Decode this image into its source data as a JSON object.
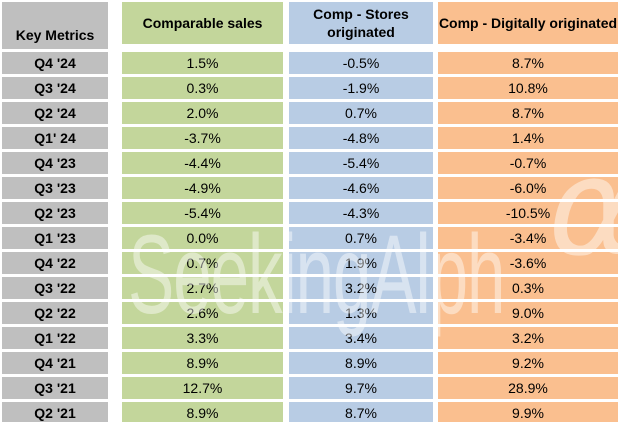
{
  "chart_data": {
    "type": "table",
    "title": "Key Metrics",
    "categories": [
      "Q4 '24",
      "Q3 '24",
      "Q2 '24",
      "Q1' 24",
      "Q4 '23",
      "Q3 '23",
      "Q2 '23",
      "Q1 '23",
      "Q4 '22",
      "Q3 '22",
      "Q2 '22",
      "Q1 '22",
      "Q4 '21",
      "Q3 '21",
      "Q2 '21"
    ],
    "series": [
      {
        "name": "Comparable sales",
        "values": [
          1.5,
          0.3,
          2.0,
          -3.7,
          -4.4,
          -4.9,
          -5.4,
          0.0,
          0.7,
          2.7,
          2.6,
          3.3,
          8.9,
          12.7,
          8.9
        ]
      },
      {
        "name": "Comp - Stores originated",
        "values": [
          -0.5,
          -1.9,
          0.7,
          -4.8,
          -5.4,
          -4.6,
          -4.3,
          0.7,
          1.9,
          3.2,
          1.3,
          3.4,
          8.9,
          9.7,
          8.7
        ]
      },
      {
        "name": "Comp - Digitally originated",
        "values": [
          8.7,
          10.8,
          8.7,
          1.4,
          -0.7,
          -6.0,
          -10.5,
          -3.4,
          -3.6,
          0.3,
          9.0,
          3.2,
          9.2,
          28.9,
          9.9
        ]
      }
    ],
    "unit": "%"
  },
  "table": {
    "columns": [
      {
        "key": "metric",
        "label": "Key Metrics",
        "color": "#bfbfbf"
      },
      {
        "key": "comparable",
        "label": "Comparable sales",
        "color": "#c3d69b"
      },
      {
        "key": "stores",
        "label": "Comp - Stores originated",
        "color": "#b8cce4"
      },
      {
        "key": "digital",
        "label": "Comp - Digitally originated",
        "color": "#fabf8f"
      }
    ],
    "rows": [
      {
        "metric": "Q4 '24",
        "comparable": "1.5%",
        "stores": "-0.5%",
        "digital": "8.7%"
      },
      {
        "metric": "Q3 '24",
        "comparable": "0.3%",
        "stores": "-1.9%",
        "digital": "10.8%"
      },
      {
        "metric": "Q2 '24",
        "comparable": "2.0%",
        "stores": "0.7%",
        "digital": "8.7%"
      },
      {
        "metric": "Q1' 24",
        "comparable": "-3.7%",
        "stores": "-4.8%",
        "digital": "1.4%"
      },
      {
        "metric": "Q4 '23",
        "comparable": "-4.4%",
        "stores": "-5.4%",
        "digital": "-0.7%"
      },
      {
        "metric": "Q3 '23",
        "comparable": "-4.9%",
        "stores": "-4.6%",
        "digital": "-6.0%"
      },
      {
        "metric": "Q2 '23",
        "comparable": "-5.4%",
        "stores": "-4.3%",
        "digital": "-10.5%"
      },
      {
        "metric": "Q1 '23",
        "comparable": "0.0%",
        "stores": "0.7%",
        "digital": "-3.4%"
      },
      {
        "metric": "Q4 '22",
        "comparable": "0.7%",
        "stores": "1.9%",
        "digital": "-3.6%"
      },
      {
        "metric": "Q3 '22",
        "comparable": "2.7%",
        "stores": "3.2%",
        "digital": "0.3%"
      },
      {
        "metric": "Q2 '22",
        "comparable": "2.6%",
        "stores": "1.3%",
        "digital": "9.0%"
      },
      {
        "metric": "Q1 '22",
        "comparable": "3.3%",
        "stores": "3.4%",
        "digital": "3.2%"
      },
      {
        "metric": "Q4 '21",
        "comparable": "8.9%",
        "stores": "8.9%",
        "digital": "9.2%"
      },
      {
        "metric": "Q3 '21",
        "comparable": "12.7%",
        "stores": "9.7%",
        "digital": "28.9%"
      },
      {
        "metric": "Q2 '21",
        "comparable": "8.9%",
        "stores": "8.7%",
        "digital": "9.9%"
      }
    ]
  },
  "watermark": {
    "text": "SeekingAlph",
    "alpha": "α",
    "color": "rgba(255,255,255,0.45)"
  }
}
